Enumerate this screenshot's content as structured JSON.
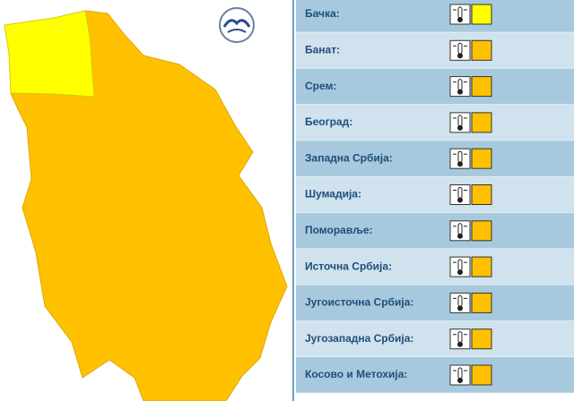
{
  "regions": [
    {
      "name": "Бачка:",
      "color": "#ffff00"
    },
    {
      "name": "Банат:",
      "color": "#ffc000"
    },
    {
      "name": "Срем:",
      "color": "#ffc000"
    },
    {
      "name": "Београд:",
      "color": "#ffc000"
    },
    {
      "name": "Западна Србија:",
      "color": "#ffc000"
    },
    {
      "name": "Шумадија:",
      "color": "#ffc000"
    },
    {
      "name": "Поморавље:",
      "color": "#ffc000"
    },
    {
      "name": "Источна Србија:",
      "color": "#ffc000"
    },
    {
      "name": "Југоисточна Србија:",
      "color": "#ffc000"
    },
    {
      "name": "Југозападна Србија:",
      "color": "#ffc000"
    },
    {
      "name": "Косово и Метохија:",
      "color": "#ffc000"
    }
  ]
}
